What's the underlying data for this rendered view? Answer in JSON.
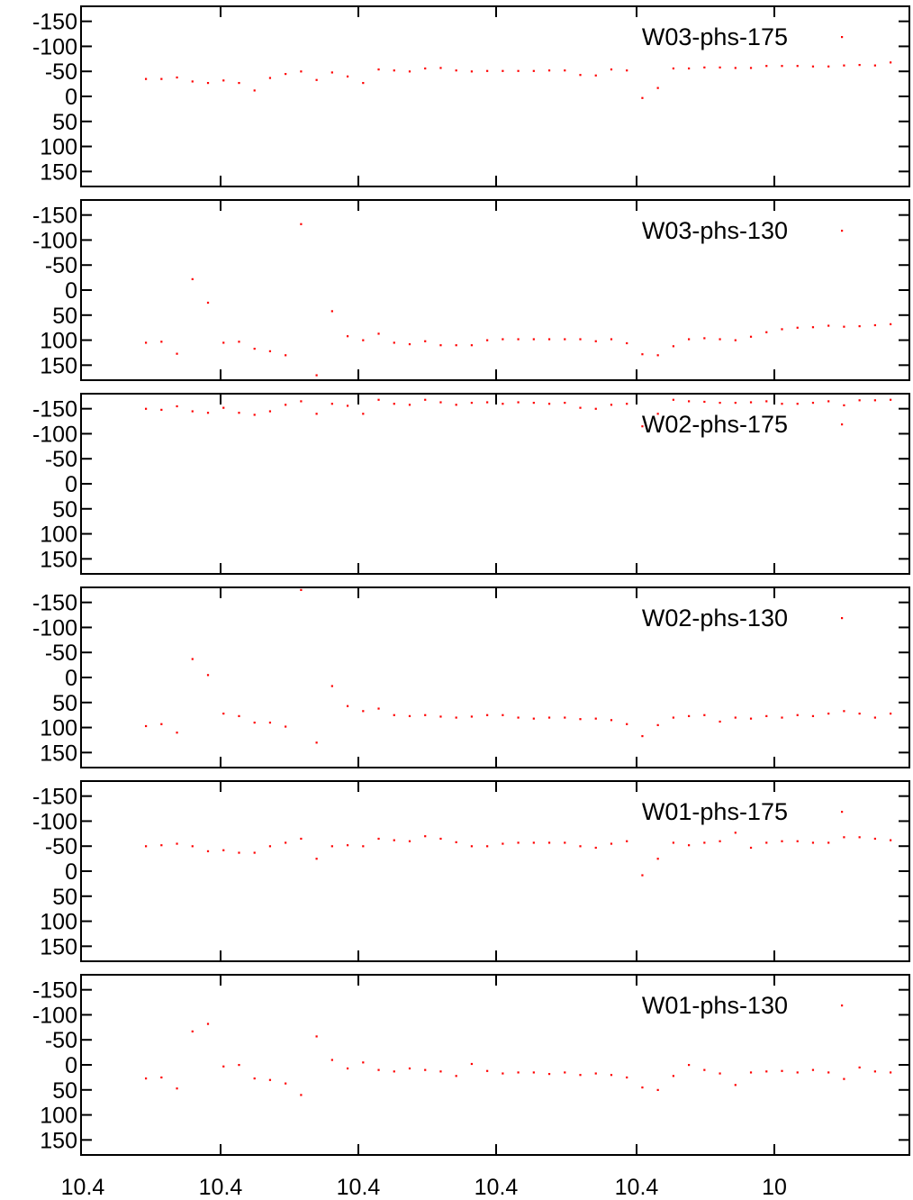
{
  "chart_data": [
    {
      "type": "scatter",
      "legend": "W03-phs-175",
      "legend_position": "top-right",
      "color": "#ff0000",
      "reversed_y": true,
      "ylim": [
        -180,
        180
      ],
      "yticks": [
        "-150",
        "-100",
        "-50",
        "0",
        "50",
        "100",
        "150"
      ],
      "xticks": [
        "10.4",
        "10.4",
        "10.4",
        "10.4",
        "10.4",
        "10"
      ],
      "y": [
        -35,
        -35,
        -38,
        -30,
        -27,
        -32,
        -27,
        -12,
        -37,
        -45,
        -50,
        -33,
        -48,
        -40,
        -27,
        -54,
        -52,
        -50,
        -56,
        -57,
        -52,
        -50,
        -51,
        -51,
        -51,
        -51,
        -52,
        -52,
        -43,
        -42,
        -54,
        -52,
        3,
        -17,
        -56,
        -56,
        -58,
        -58,
        -57,
        -57,
        -61,
        -61,
        -61,
        -60,
        -60,
        -62,
        -63,
        -62,
        -68
      ]
    },
    {
      "type": "scatter",
      "legend": "W03-phs-130",
      "legend_position": "top-right",
      "color": "#ff0000",
      "reversed_y": true,
      "ylim": [
        -180,
        180
      ],
      "yticks": [
        "-150",
        "-100",
        "-50",
        "0",
        "50",
        "100",
        "150"
      ],
      "xticks": [
        "10.4",
        "10.4",
        "10.4",
        "10.4",
        "10.4",
        "10"
      ],
      "y": [
        105,
        103,
        127,
        -22,
        25,
        105,
        103,
        117,
        122,
        130,
        -132,
        170,
        42,
        92,
        100,
        87,
        105,
        108,
        102,
        110,
        110,
        110,
        100,
        98,
        98,
        98,
        98,
        98,
        98,
        102,
        98,
        106,
        128,
        130,
        112,
        98,
        96,
        98,
        100,
        93,
        84,
        78,
        75,
        74,
        71,
        73,
        72,
        70,
        68
      ]
    },
    {
      "type": "scatter",
      "legend": "W02-phs-175",
      "legend_position": "top-right",
      "color": "#ff0000",
      "reversed_y": true,
      "ylim": [
        -180,
        180
      ],
      "yticks": [
        "-150",
        "-100",
        "-50",
        "0",
        "50",
        "100",
        "150"
      ],
      "xticks": [
        "10.4",
        "10.4",
        "10.4",
        "10.4",
        "10.4",
        "10"
      ],
      "y": [
        -150,
        -148,
        -155,
        -145,
        -142,
        -152,
        -142,
        -138,
        -145,
        -158,
        -165,
        -140,
        -160,
        -156,
        -140,
        -168,
        -160,
        -158,
        -168,
        -163,
        -158,
        -162,
        -163,
        -160,
        -163,
        -162,
        -160,
        -162,
        -152,
        -150,
        -158,
        -160,
        -115,
        -140,
        -168,
        -165,
        -164,
        -162,
        -162,
        -163,
        -165,
        -160,
        -160,
        -162,
        -165,
        -157,
        -167,
        -167,
        -168
      ]
    },
    {
      "type": "scatter",
      "legend": "W02-phs-130",
      "legend_position": "top-right",
      "color": "#ff0000",
      "reversed_y": true,
      "ylim": [
        -180,
        180
      ],
      "yticks": [
        "-150",
        "-100",
        "-50",
        "0",
        "50",
        "100",
        "150"
      ],
      "xticks": [
        "10.4",
        "10.4",
        "10.4",
        "10.4",
        "10.4",
        "10"
      ],
      "y": [
        97,
        93,
        110,
        -37,
        -5,
        72,
        77,
        90,
        90,
        98,
        -175,
        130,
        17,
        57,
        67,
        62,
        75,
        77,
        75,
        78,
        80,
        78,
        75,
        75,
        80,
        82,
        80,
        80,
        83,
        82,
        85,
        93,
        117,
        95,
        80,
        77,
        75,
        88,
        80,
        82,
        77,
        80,
        75,
        77,
        72,
        67,
        72,
        80,
        72
      ]
    },
    {
      "type": "scatter",
      "legend": "W01-phs-175",
      "legend_position": "top-right",
      "color": "#ff0000",
      "reversed_y": true,
      "ylim": [
        -180,
        180
      ],
      "yticks": [
        "-150",
        "-100",
        "-50",
        "0",
        "50",
        "100",
        "150"
      ],
      "xticks": [
        "10.4",
        "10.4",
        "10.4",
        "10.4",
        "10.4",
        "10"
      ],
      "y": [
        -50,
        -52,
        -55,
        -50,
        -40,
        -42,
        -37,
        -37,
        -50,
        -57,
        -65,
        -25,
        -50,
        -52,
        -50,
        -65,
        -62,
        -60,
        -70,
        -65,
        -58,
        -50,
        -50,
        -55,
        -57,
        -57,
        -57,
        -57,
        -50,
        -47,
        -55,
        -60,
        8,
        -25,
        -57,
        -52,
        -57,
        -60,
        -77,
        -47,
        -57,
        -60,
        -60,
        -57,
        -57,
        -68,
        -68,
        -65,
        -62
      ]
    },
    {
      "type": "scatter",
      "legend": "W01-phs-130",
      "legend_position": "top-right",
      "color": "#ff0000",
      "reversed_y": true,
      "ylim": [
        -180,
        180
      ],
      "yticks": [
        "-150",
        "-100",
        "-50",
        "0",
        "50",
        "100",
        "150"
      ],
      "xticks": [
        "10.4",
        "10.4",
        "10.4",
        "10.4",
        "10.4",
        "10"
      ],
      "y": [
        27,
        25,
        47,
        -67,
        -82,
        3,
        0,
        27,
        30,
        37,
        60,
        -57,
        -10,
        7,
        -5,
        10,
        13,
        7,
        10,
        13,
        22,
        -2,
        12,
        17,
        15,
        15,
        18,
        15,
        20,
        17,
        20,
        25,
        45,
        50,
        22,
        0,
        10,
        17,
        40,
        15,
        13,
        12,
        15,
        10,
        15,
        28,
        5,
        13,
        15
      ]
    }
  ]
}
